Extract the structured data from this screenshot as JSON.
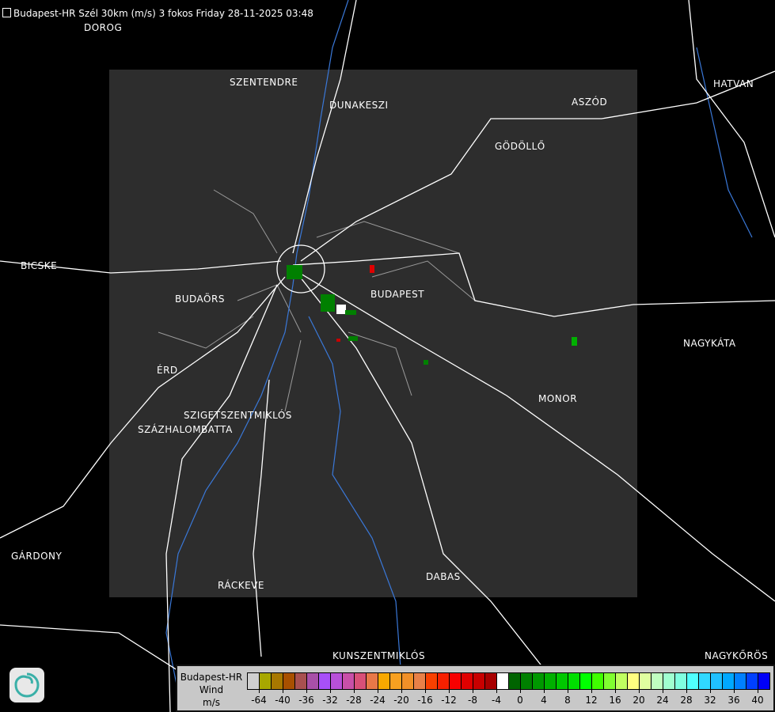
{
  "title": "Budapest-HR Szél 30km (m/s) 3 fokos Friday 28-11-2025 03:48",
  "towns": [
    {
      "name": "DOROG"
    },
    {
      "name": "SZENTENDRE"
    },
    {
      "name": "DUNAKESZI"
    },
    {
      "name": "HATVAN"
    },
    {
      "name": "ASZÓD"
    },
    {
      "name": "GÖDÖLLŐ"
    },
    {
      "name": "BICSKE"
    },
    {
      "name": "BUDAÖRS"
    },
    {
      "name": "BUDAPEST"
    },
    {
      "name": "NAGYKÁTA"
    },
    {
      "name": "ÉRD"
    },
    {
      "name": "MONOR"
    },
    {
      "name": "SZIGETSZENTMIKLÓS"
    },
    {
      "name": "SZÁZHALOMBATTA"
    },
    {
      "name": "GÁRDONY"
    },
    {
      "name": "RÁCKEVE"
    },
    {
      "name": "DABAS"
    },
    {
      "name": "KUNSZENTMIKLÓS"
    },
    {
      "name": "NAGYKŐRÖS"
    }
  ],
  "legend": {
    "radar": "Budapest-HR",
    "quantity": "Wind",
    "unit": "m/s",
    "colors": [
      "#d0d0d0",
      "#a8a800",
      "#a87800",
      "#a85000",
      "#a85050",
      "#a850a8",
      "#a850f8",
      "#b850d8",
      "#c850a8",
      "#d85078",
      "#e87848",
      "#f8a800",
      "#f8a020",
      "#f09028",
      "#e88048",
      "#f84000",
      "#f82000",
      "#f80000",
      "#e00000",
      "#c80000",
      "#a80000",
      "#ffffff",
      "#006400",
      "#008000",
      "#009800",
      "#00b000",
      "#00c800",
      "#00e000",
      "#00ff00",
      "#40ff00",
      "#80ff30",
      "#c0ff60",
      "#ffff80",
      "#e0ffa0",
      "#c0ffc0",
      "#a0ffd0",
      "#80ffe0",
      "#50ffff",
      "#30d8ff",
      "#20c0ff",
      "#00a8ff",
      "#0080ff",
      "#0040ff",
      "#0000f8"
    ],
    "ticks": [
      "-64",
      "-40",
      "-36",
      "-32",
      "-28",
      "-24",
      "-20",
      "-16",
      "-12",
      "-8",
      "-4",
      "0",
      "4",
      "8",
      "12",
      "16",
      "20",
      "24",
      "28",
      "32",
      "36",
      "40"
    ]
  },
  "colors": {
    "background": "#000000",
    "coverage": "#2d2d2d",
    "roads": "#ffffff",
    "rivers": "#3a78d8",
    "borders": "#9a9a9a"
  }
}
